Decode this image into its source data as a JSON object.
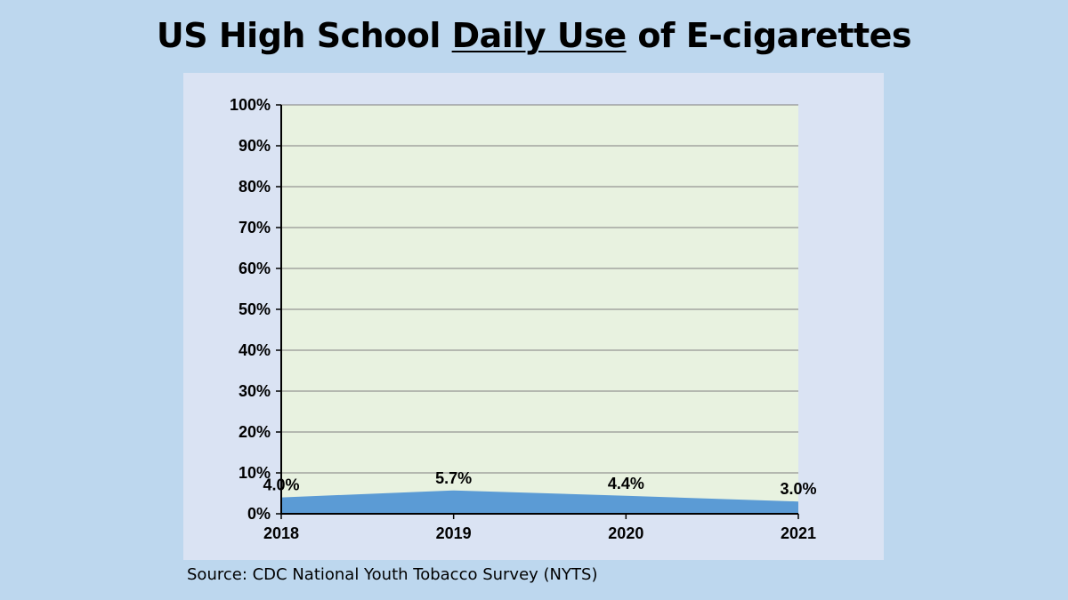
{
  "title": {
    "before": "US High School ",
    "underlined": "Daily Use",
    "after": " of E-cigarettes"
  },
  "source": "Source:  CDC National Youth Tobacco Survey (NYTS)",
  "chart_data": {
    "type": "area",
    "title": "US High School Daily Use of E-cigarettes",
    "categories": [
      "2018",
      "2019",
      "2020",
      "2021"
    ],
    "series": [
      {
        "values": [
          4.0,
          5.7,
          4.4,
          3.0
        ],
        "labels": [
          "4.0%",
          "5.7%",
          "4.4%",
          "3.0%"
        ],
        "color": "#5b9bd5"
      }
    ],
    "ylim": [
      0,
      100
    ],
    "yticks": [
      0,
      10,
      20,
      30,
      40,
      50,
      60,
      70,
      80,
      90,
      100
    ],
    "ytick_labels": [
      "0%",
      "10%",
      "20%",
      "30%",
      "40%",
      "50%",
      "60%",
      "70%",
      "80%",
      "90%",
      "100%"
    ],
    "grid": true,
    "plot_background": "#e8f2e0",
    "legend": "none"
  },
  "colors": {
    "slide_background": "#bdd7ee",
    "panel_background": "#dae3f3",
    "plot_background": "#e8f2e0",
    "area_fill": "#5b9bd5",
    "gridline": "#7f7f7f"
  }
}
